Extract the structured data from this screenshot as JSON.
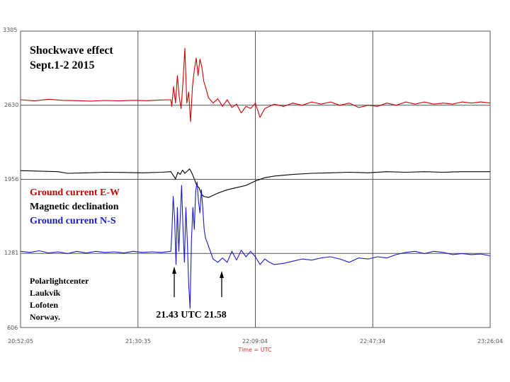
{
  "chart_data": {
    "type": "line",
    "title": "Shockwave effect",
    "subtitle": "Sept.1-2 2015",
    "xlabel": "Time = UTC",
    "ylabel": "",
    "ylim": [
      606,
      3305
    ],
    "y_ticks": [
      "3305",
      "2630",
      "1956",
      "1281",
      "606"
    ],
    "x_ticks": [
      "20:52:05",
      "21:30:35",
      "22:09:04",
      "22:47:34",
      "23:26:04"
    ],
    "grid": true,
    "legend_position": "left",
    "series": [
      {
        "name": "Ground current E-W",
        "color": "#cc0000",
        "values": [
          [
            0,
            2680
          ],
          [
            0.03,
            2670
          ],
          [
            0.06,
            2685
          ],
          [
            0.09,
            2675
          ],
          [
            0.12,
            2672
          ],
          [
            0.15,
            2668
          ],
          [
            0.18,
            2674
          ],
          [
            0.21,
            2670
          ],
          [
            0.24,
            2675
          ],
          [
            0.27,
            2672
          ],
          [
            0.3,
            2678
          ],
          [
            0.32,
            2680
          ],
          [
            0.322,
            2620
          ],
          [
            0.326,
            2800
          ],
          [
            0.33,
            2650
          ],
          [
            0.334,
            2900
          ],
          [
            0.338,
            2700
          ],
          [
            0.342,
            2600
          ],
          [
            0.346,
            2850
          ],
          [
            0.35,
            3150
          ],
          [
            0.354,
            2650
          ],
          [
            0.358,
            2750
          ],
          [
            0.362,
            2480
          ],
          [
            0.366,
            2800
          ],
          [
            0.37,
            2950
          ],
          [
            0.374,
            3060
          ],
          [
            0.378,
            2900
          ],
          [
            0.382,
            3050
          ],
          [
            0.386,
            2980
          ],
          [
            0.39,
            2850
          ],
          [
            0.395,
            2780
          ],
          [
            0.4,
            2700
          ],
          [
            0.41,
            2650
          ],
          [
            0.42,
            2690
          ],
          [
            0.43,
            2620
          ],
          [
            0.44,
            2680
          ],
          [
            0.45,
            2610
          ],
          [
            0.46,
            2640
          ],
          [
            0.47,
            2560
          ],
          [
            0.48,
            2620
          ],
          [
            0.49,
            2600
          ],
          [
            0.5,
            2650
          ],
          [
            0.51,
            2520
          ],
          [
            0.52,
            2600
          ],
          [
            0.54,
            2640
          ],
          [
            0.56,
            2620
          ],
          [
            0.58,
            2650
          ],
          [
            0.6,
            2630
          ],
          [
            0.62,
            2660
          ],
          [
            0.64,
            2640
          ],
          [
            0.66,
            2660
          ],
          [
            0.68,
            2630
          ],
          [
            0.7,
            2650
          ],
          [
            0.72,
            2610
          ],
          [
            0.74,
            2630
          ],
          [
            0.76,
            2620
          ],
          [
            0.78,
            2650
          ],
          [
            0.8,
            2630
          ],
          [
            0.82,
            2660
          ],
          [
            0.84,
            2640
          ],
          [
            0.86,
            2660
          ],
          [
            0.88,
            2640
          ],
          [
            0.9,
            2650
          ],
          [
            0.92,
            2640
          ],
          [
            0.94,
            2660
          ],
          [
            0.96,
            2650
          ],
          [
            0.98,
            2660
          ],
          [
            1.0,
            2650
          ]
        ]
      },
      {
        "name": "Magnetic declination",
        "color": "#000000",
        "values": [
          [
            0,
            2035
          ],
          [
            0.04,
            2030
          ],
          [
            0.08,
            2025
          ],
          [
            0.1,
            2010
          ],
          [
            0.14,
            2015
          ],
          [
            0.18,
            2020
          ],
          [
            0.22,
            2018
          ],
          [
            0.26,
            2015
          ],
          [
            0.3,
            2020
          ],
          [
            0.32,
            2025
          ],
          [
            0.33,
            1960
          ],
          [
            0.335,
            2020
          ],
          [
            0.34,
            2000
          ],
          [
            0.345,
            2040
          ],
          [
            0.35,
            2010
          ],
          [
            0.355,
            2030
          ],
          [
            0.36,
            2050
          ],
          [
            0.365,
            2010
          ],
          [
            0.37,
            1960
          ],
          [
            0.375,
            1900
          ],
          [
            0.38,
            1880
          ],
          [
            0.385,
            1820
          ],
          [
            0.39,
            1800
          ],
          [
            0.4,
            1790
          ],
          [
            0.41,
            1810
          ],
          [
            0.42,
            1830
          ],
          [
            0.44,
            1860
          ],
          [
            0.46,
            1880
          ],
          [
            0.48,
            1900
          ],
          [
            0.5,
            1940
          ],
          [
            0.52,
            1970
          ],
          [
            0.54,
            1985
          ],
          [
            0.58,
            2000
          ],
          [
            0.62,
            2010
          ],
          [
            0.66,
            2015
          ],
          [
            0.7,
            2020
          ],
          [
            0.74,
            2015
          ],
          [
            0.78,
            2025
          ],
          [
            0.82,
            2020
          ],
          [
            0.86,
            2025
          ],
          [
            0.9,
            2020
          ],
          [
            0.94,
            2025
          ],
          [
            1.0,
            2025
          ]
        ]
      },
      {
        "name": "Ground current N-S",
        "color": "#1a1acc",
        "values": [
          [
            0,
            1300
          ],
          [
            0.02,
            1290
          ],
          [
            0.04,
            1305
          ],
          [
            0.06,
            1285
          ],
          [
            0.08,
            1295
          ],
          [
            0.1,
            1280
          ],
          [
            0.12,
            1300
          ],
          [
            0.14,
            1285
          ],
          [
            0.16,
            1300
          ],
          [
            0.18,
            1290
          ],
          [
            0.2,
            1295
          ],
          [
            0.22,
            1285
          ],
          [
            0.24,
            1300
          ],
          [
            0.26,
            1290
          ],
          [
            0.28,
            1295
          ],
          [
            0.3,
            1290
          ],
          [
            0.32,
            1300
          ],
          [
            0.322,
            1450
          ],
          [
            0.325,
            1800
          ],
          [
            0.328,
            1600
          ],
          [
            0.331,
            1180
          ],
          [
            0.334,
            1700
          ],
          [
            0.337,
            1300
          ],
          [
            0.34,
            1600
          ],
          [
            0.343,
            1900
          ],
          [
            0.346,
            1500
          ],
          [
            0.349,
            1200
          ],
          [
            0.352,
            1700
          ],
          [
            0.355,
            1400
          ],
          [
            0.358,
            1000
          ],
          [
            0.361,
            780
          ],
          [
            0.364,
            1400
          ],
          [
            0.367,
            1700
          ],
          [
            0.37,
            1500
          ],
          [
            0.373,
            1850
          ],
          [
            0.376,
            1930
          ],
          [
            0.379,
            1750
          ],
          [
            0.382,
            1650
          ],
          [
            0.385,
            1860
          ],
          [
            0.388,
            1700
          ],
          [
            0.391,
            1500
          ],
          [
            0.394,
            1420
          ],
          [
            0.4,
            1350
          ],
          [
            0.41,
            1230
          ],
          [
            0.42,
            1200
          ],
          [
            0.43,
            1240
          ],
          [
            0.44,
            1200
          ],
          [
            0.45,
            1300
          ],
          [
            0.46,
            1220
          ],
          [
            0.47,
            1310
          ],
          [
            0.48,
            1250
          ],
          [
            0.49,
            1300
          ],
          [
            0.5,
            1250
          ],
          [
            0.51,
            1180
          ],
          [
            0.52,
            1230
          ],
          [
            0.53,
            1200
          ],
          [
            0.54,
            1180
          ],
          [
            0.56,
            1190
          ],
          [
            0.58,
            1210
          ],
          [
            0.6,
            1230
          ],
          [
            0.62,
            1220
          ],
          [
            0.64,
            1240
          ],
          [
            0.66,
            1250
          ],
          [
            0.68,
            1230
          ],
          [
            0.7,
            1200
          ],
          [
            0.72,
            1240
          ],
          [
            0.74,
            1230
          ],
          [
            0.76,
            1250
          ],
          [
            0.78,
            1240
          ],
          [
            0.8,
            1270
          ],
          [
            0.82,
            1290
          ],
          [
            0.84,
            1300
          ],
          [
            0.86,
            1280
          ],
          [
            0.88,
            1300
          ],
          [
            0.9,
            1290
          ],
          [
            0.92,
            1270
          ],
          [
            0.94,
            1280
          ],
          [
            0.96,
            1270
          ],
          [
            0.98,
            1275
          ],
          [
            1.0,
            1260
          ]
        ]
      }
    ],
    "annotations": {
      "location_lines": [
        "Polarlightcenter",
        "Laukvik",
        "Lofoten",
        "Norway."
      ],
      "times_label": "21.43 UTC 21.58"
    }
  }
}
